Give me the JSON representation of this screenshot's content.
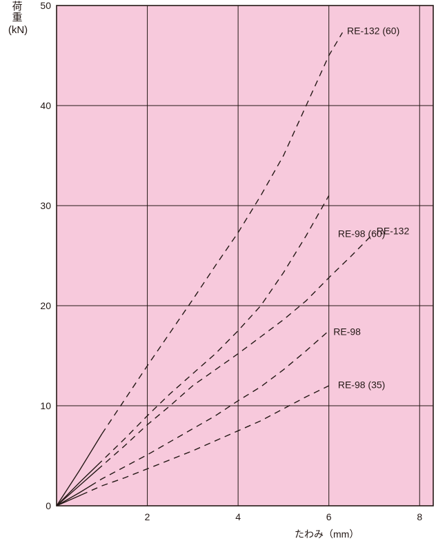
{
  "chart_data": {
    "type": "line",
    "title": "",
    "ylabel_chars": [
      "荷",
      "重"
    ],
    "yunit": "(kN)",
    "xlabel": "たわみ（mm）",
    "xlim": [
      0,
      8.3
    ],
    "ylim": [
      0,
      50
    ],
    "x_ticks": [
      2,
      4,
      6,
      8
    ],
    "y_ticks": [
      0,
      10,
      20,
      30,
      40,
      50
    ],
    "grid": true,
    "plot_background": "#f7c9dc",
    "series": [
      {
        "name": "RE-132 (60)",
        "solid_to_x": 1.0,
        "x": [
          0,
          0.5,
          1,
          1.5,
          2,
          2.5,
          3,
          3.5,
          4,
          4.5,
          5,
          5.5,
          6,
          6.3
        ],
        "y": [
          0,
          3.5,
          7.2,
          10.6,
          14,
          17.3,
          20.6,
          24,
          27.3,
          31,
          35,
          40,
          45,
          47.3
        ]
      },
      {
        "name": "RE-98 (60)",
        "solid_to_x": 0.9,
        "x": [
          0,
          0.5,
          1,
          1.5,
          2,
          2.5,
          3,
          3.5,
          4,
          4.5,
          5,
          5.5,
          6
        ],
        "y": [
          0,
          2.3,
          4.5,
          6.7,
          9,
          11.2,
          13.2,
          15.2,
          17.5,
          20,
          23.3,
          27,
          31
        ]
      },
      {
        "name": "RE-132",
        "solid_to_x": 0.9,
        "x": [
          0,
          0.5,
          1,
          1.5,
          2,
          2.5,
          3,
          3.5,
          4,
          4.5,
          5,
          5.5,
          6,
          6.5,
          7
        ],
        "y": [
          0,
          2,
          4,
          6,
          8.1,
          10,
          12,
          13.6,
          15.2,
          16.9,
          18.6,
          20.5,
          22.8,
          25,
          27.3
        ]
      },
      {
        "name": "RE-98",
        "solid_to_x": 0.75,
        "x": [
          0,
          0.5,
          1,
          1.5,
          2,
          2.5,
          3,
          3.5,
          4,
          4.5,
          5,
          5.5,
          6
        ],
        "y": [
          0,
          1.3,
          2.7,
          3.9,
          5.1,
          6.4,
          7.7,
          9,
          10.5,
          11.9,
          13.6,
          15.5,
          17.5
        ]
      },
      {
        "name": "RE-98 (35)",
        "solid_to_x": 0.55,
        "x": [
          0,
          0.5,
          1,
          1.5,
          2,
          2.5,
          3,
          3.5,
          4,
          4.5,
          5,
          5.5,
          6
        ],
        "y": [
          0,
          1,
          2,
          2.8,
          3.7,
          4.6,
          5.5,
          6.5,
          7.5,
          8.5,
          9.7,
          10.9,
          12
        ]
      }
    ],
    "annotations": [
      {
        "text": "RE-132 (60)",
        "x": 6.4,
        "y": 47.5
      },
      {
        "text": "RE-98 (60)",
        "x": 6.2,
        "y": 27.2
      },
      {
        "text": "RE-132",
        "x": 7.05,
        "y": 27.5
      },
      {
        "text": "RE-98",
        "x": 6.1,
        "y": 17.4
      },
      {
        "text": "RE-98 (35)",
        "x": 6.2,
        "y": 12.1
      }
    ]
  }
}
